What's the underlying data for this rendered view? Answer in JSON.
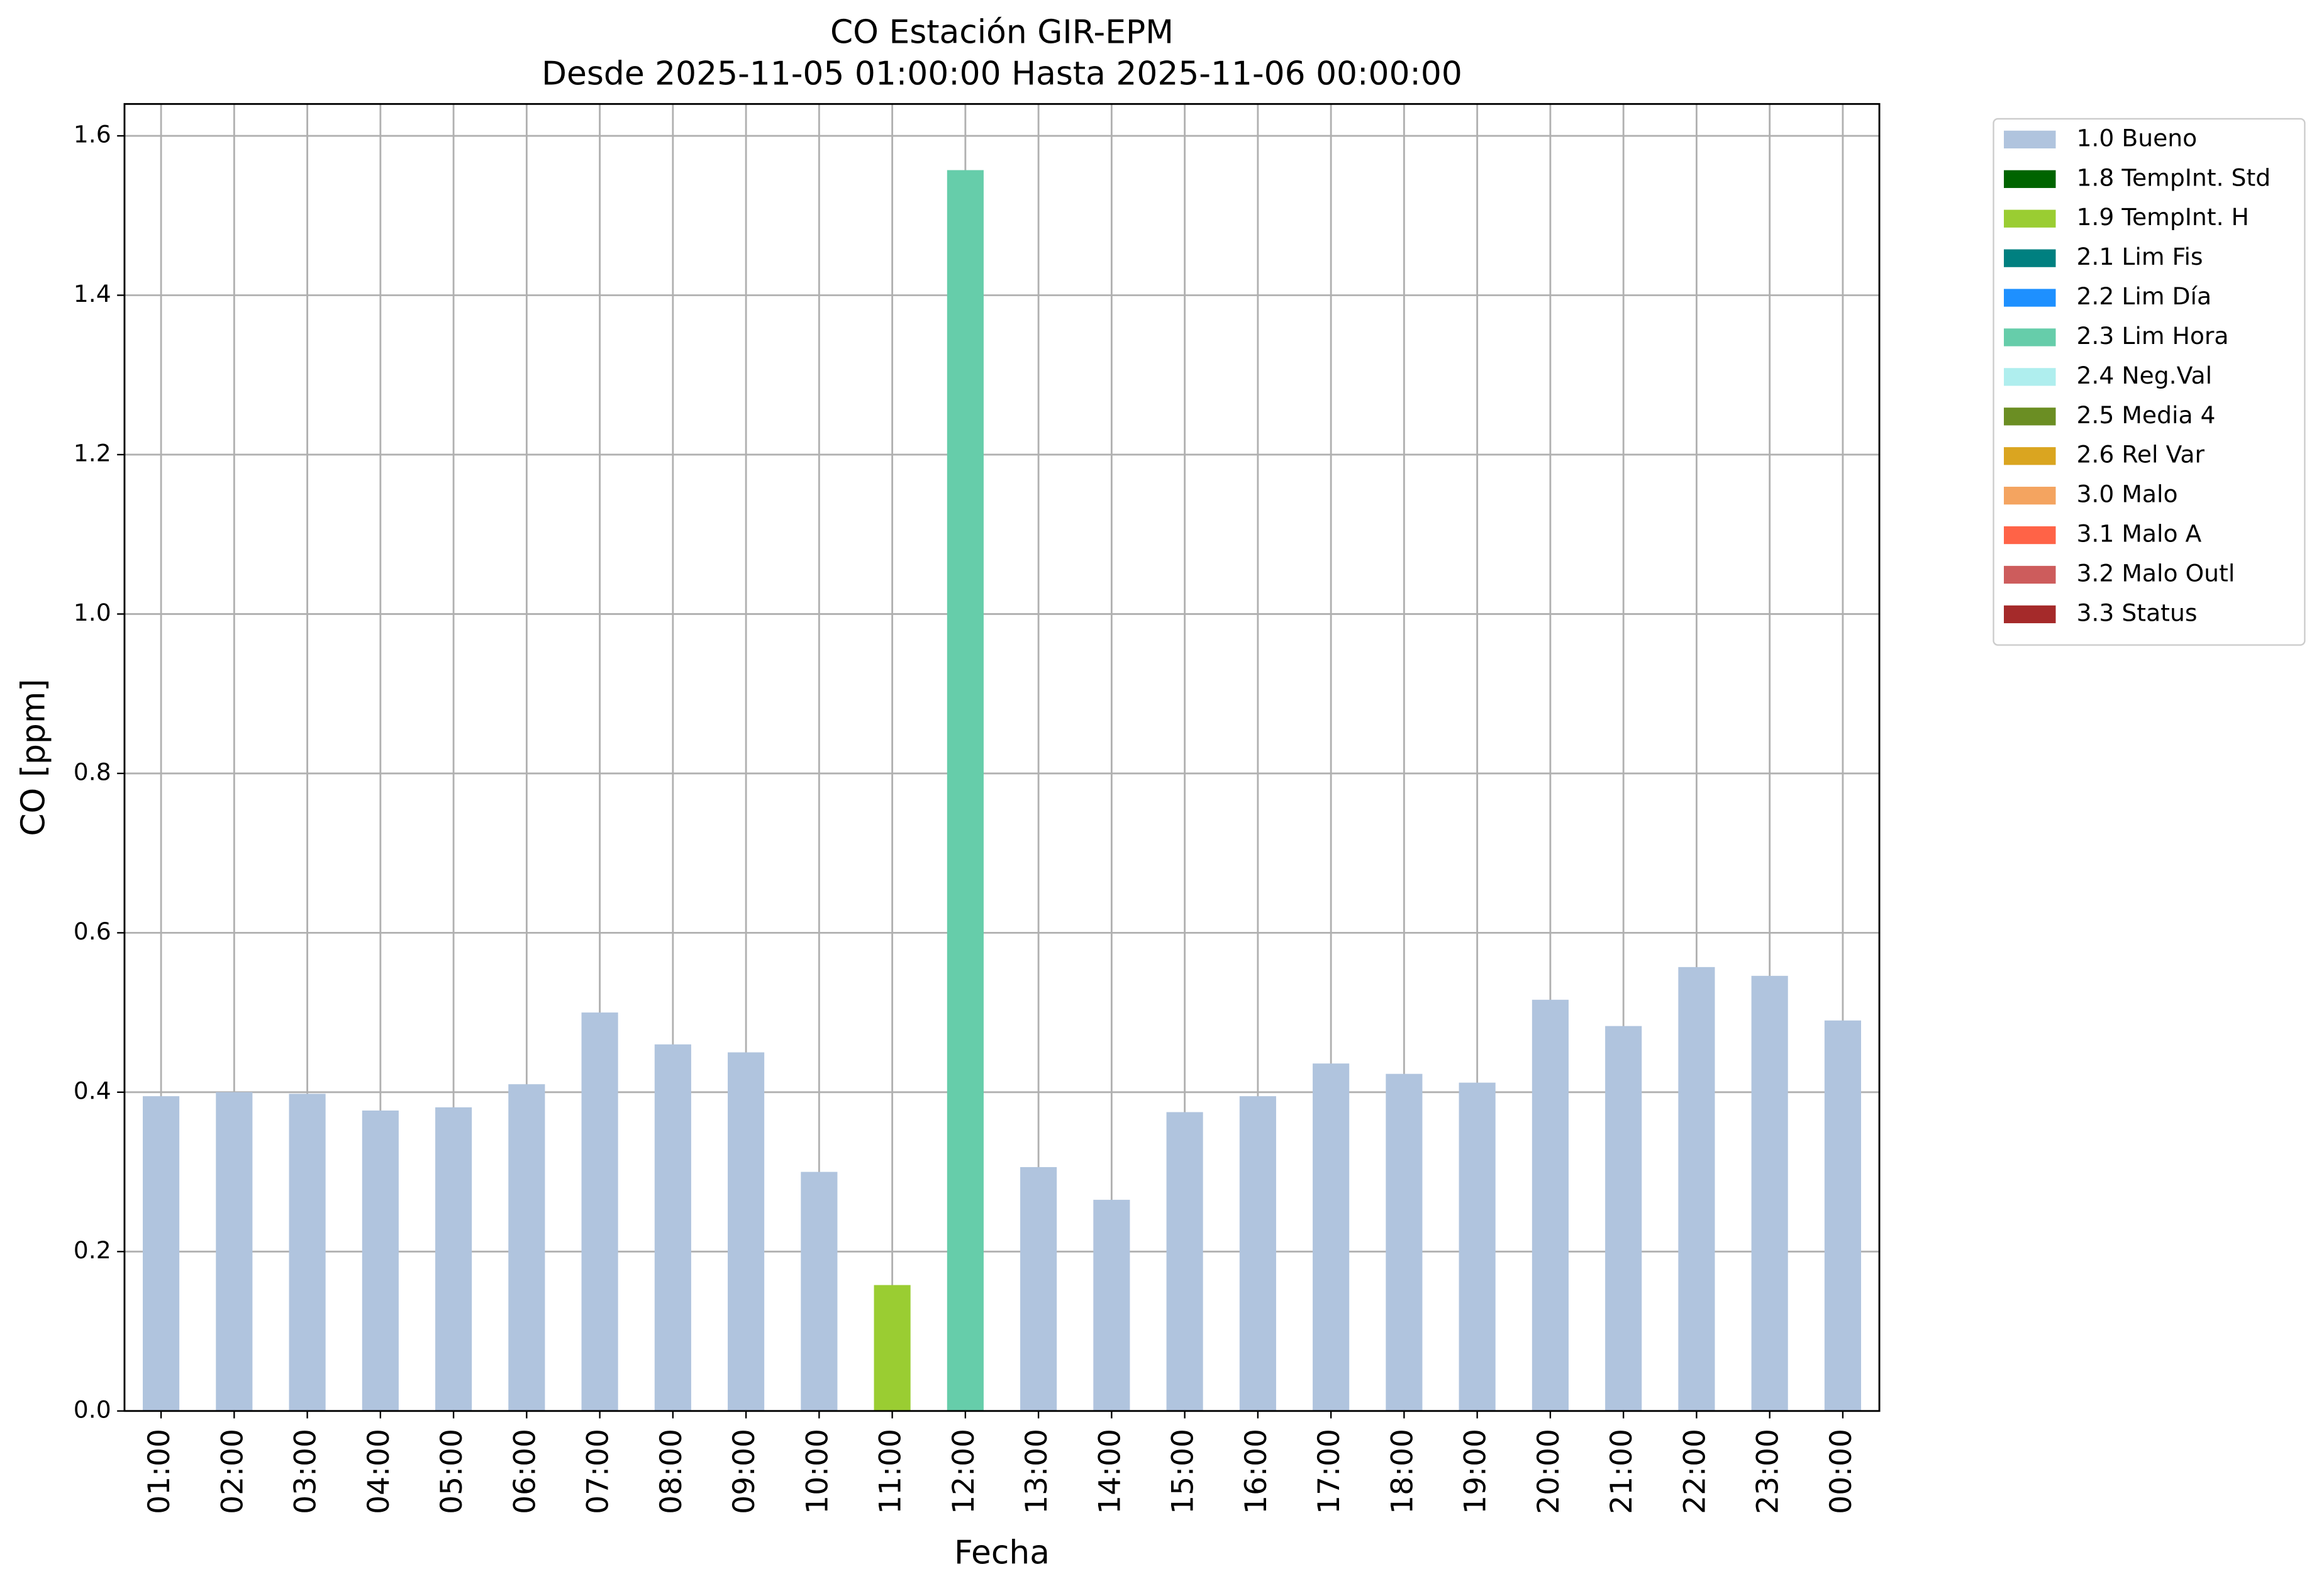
{
  "chart_data": {
    "type": "bar",
    "stacked": true,
    "title": "CO Estación GIR-EPM",
    "subtitle": "Desde 2025-11-05 01:00:00 Hasta 2025-11-06 00:00:00",
    "x_label": "Fecha",
    "y_label": "CO [ppm]",
    "categories": [
      "01:00",
      "02:00",
      "03:00",
      "04:00",
      "05:00",
      "06:00",
      "07:00",
      "08:00",
      "09:00",
      "10:00",
      "11:00",
      "12:00",
      "13:00",
      "14:00",
      "15:00",
      "16:00",
      "17:00",
      "18:00",
      "19:00",
      "20:00",
      "21:00",
      "22:00",
      "23:00",
      "00:00"
    ],
    "series": [
      {
        "name": "1.0 Bueno",
        "color": "#b0c4de",
        "values": [
          0.395,
          0.4,
          0.398,
          0.377,
          0.381,
          0.41,
          0.5,
          0.46,
          0.45,
          0.3,
          null,
          null,
          0.306,
          0.265,
          0.375,
          0.395,
          0.436,
          0.423,
          0.412,
          0.516,
          0.483,
          0.557,
          0.546,
          0.49
        ]
      },
      {
        "name": "1.8 TempInt. Std",
        "color": "#006400",
        "values": [
          null,
          null,
          null,
          null,
          null,
          null,
          null,
          null,
          null,
          null,
          null,
          null,
          null,
          null,
          null,
          null,
          null,
          null,
          null,
          null,
          null,
          null,
          null,
          null
        ]
      },
      {
        "name": "1.9 TempInt. H",
        "color": "#9acd32",
        "values": [
          null,
          null,
          null,
          null,
          null,
          null,
          null,
          null,
          null,
          null,
          0.158,
          null,
          null,
          null,
          null,
          null,
          null,
          null,
          null,
          null,
          null,
          null,
          null,
          null
        ]
      },
      {
        "name": "2.1 Lim Fis",
        "color": "#008080",
        "values": [
          null,
          null,
          null,
          null,
          null,
          null,
          null,
          null,
          null,
          null,
          null,
          null,
          null,
          null,
          null,
          null,
          null,
          null,
          null,
          null,
          null,
          null,
          null,
          null
        ]
      },
      {
        "name": "2.2 Lim Día",
        "color": "#1e90ff",
        "values": [
          null,
          null,
          null,
          null,
          null,
          null,
          null,
          null,
          null,
          null,
          null,
          null,
          null,
          null,
          null,
          null,
          null,
          null,
          null,
          null,
          null,
          null,
          null,
          null
        ]
      },
      {
        "name": "2.3 Lim Hora",
        "color": "#66cdaa",
        "values": [
          null,
          null,
          null,
          null,
          null,
          null,
          null,
          null,
          null,
          null,
          null,
          1.557,
          null,
          null,
          null,
          null,
          null,
          null,
          null,
          null,
          null,
          null,
          null,
          null
        ]
      },
      {
        "name": "2.4 Neg.Val",
        "color": "#afeeee",
        "values": [
          null,
          null,
          null,
          null,
          null,
          null,
          null,
          null,
          null,
          null,
          null,
          null,
          null,
          null,
          null,
          null,
          null,
          null,
          null,
          null,
          null,
          null,
          null,
          null
        ]
      },
      {
        "name": "2.5 Media 4",
        "color": "#6b8e23",
        "values": [
          null,
          null,
          null,
          null,
          null,
          null,
          null,
          null,
          null,
          null,
          null,
          null,
          null,
          null,
          null,
          null,
          null,
          null,
          null,
          null,
          null,
          null,
          null,
          null
        ]
      },
      {
        "name": "2.6 Rel Var",
        "color": "#daa520",
        "values": [
          null,
          null,
          null,
          null,
          null,
          null,
          null,
          null,
          null,
          null,
          null,
          null,
          null,
          null,
          null,
          null,
          null,
          null,
          null,
          null,
          null,
          null,
          null,
          null
        ]
      },
      {
        "name": "3.0 Malo",
        "color": "#f4a460",
        "values": [
          null,
          null,
          null,
          null,
          null,
          null,
          null,
          null,
          null,
          null,
          null,
          null,
          null,
          null,
          null,
          null,
          null,
          null,
          null,
          null,
          null,
          null,
          null,
          null
        ]
      },
      {
        "name": "3.1 Malo A",
        "color": "#ff6347",
        "values": [
          null,
          null,
          null,
          null,
          null,
          null,
          null,
          null,
          null,
          null,
          null,
          null,
          null,
          null,
          null,
          null,
          null,
          null,
          null,
          null,
          null,
          null,
          null,
          null
        ]
      },
      {
        "name": "3.2 Malo Outl",
        "color": "#cd5c5c",
        "values": [
          null,
          null,
          null,
          null,
          null,
          null,
          null,
          null,
          null,
          null,
          null,
          null,
          null,
          null,
          null,
          null,
          null,
          null,
          null,
          null,
          null,
          null,
          null,
          null
        ]
      },
      {
        "name": "3.3 Status",
        "color": "#a52a2a",
        "values": [
          null,
          null,
          null,
          null,
          null,
          null,
          null,
          null,
          null,
          null,
          null,
          null,
          null,
          null,
          null,
          null,
          null,
          null,
          null,
          null,
          null,
          null,
          null,
          null
        ]
      }
    ],
    "ylim": [
      0,
      1.64
    ],
    "yticks": [
      {
        "value": 0,
        "label": "0.0"
      },
      0.2,
      0.4,
      0.6,
      0.8,
      {
        "value": 1,
        "label": "1.0"
      },
      1.2,
      1.4,
      1.6
    ],
    "grid": true,
    "legend": "outside right"
  }
}
